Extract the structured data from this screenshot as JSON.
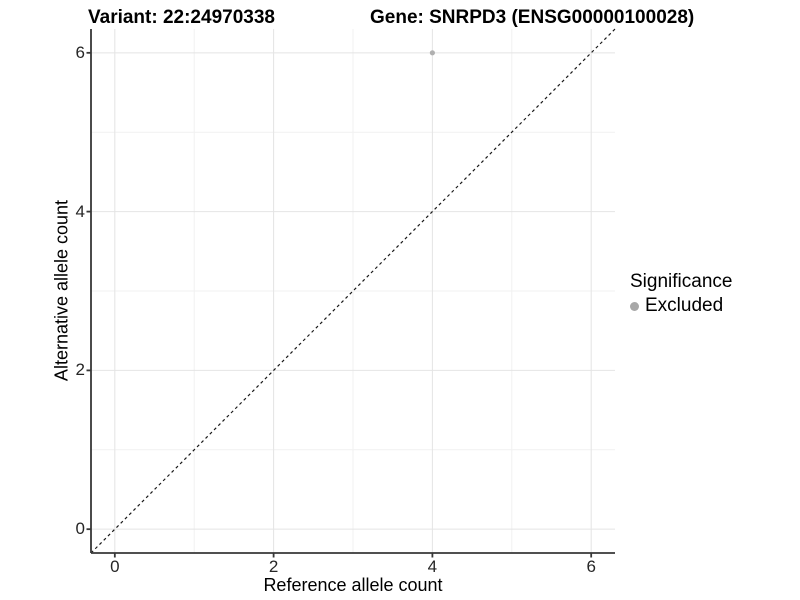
{
  "title_left": "Variant: 22:24970338",
  "title_right": "Gene: SNRPD3 (ENSG00000100028)",
  "legend": {
    "title": "Significance",
    "items": [
      {
        "label": "Excluded",
        "color": "#a8a8a8"
      }
    ]
  },
  "chart_data": {
    "type": "scatter",
    "title": "Variant: 22:24970338 / Gene: SNRPD3 (ENSG00000100028)",
    "xlabel": "Reference allele count",
    "ylabel": "Alternative allele count",
    "xlim": [
      -0.3,
      6.3
    ],
    "ylim": [
      -0.3,
      6.3
    ],
    "xticks": [
      0,
      2,
      4,
      6
    ],
    "yticks": [
      0,
      2,
      4,
      6
    ],
    "xticks_minor": [
      1,
      3,
      5
    ],
    "yticks_minor": [
      1,
      3,
      5
    ],
    "grid": true,
    "legend_position": "right",
    "series": [
      {
        "name": "Excluded",
        "color": "#b0b0b0",
        "points": [
          {
            "x": 4,
            "y": 6
          }
        ]
      }
    ],
    "reference_line": {
      "kind": "identity y=x",
      "style": "dashed",
      "color": "#1a1a1a",
      "x1": -0.3,
      "y1": -0.3,
      "x2": 6.3,
      "y2": 6.3
    }
  },
  "style": {
    "background": "#ffffff",
    "grid_major_color": "#e4e4e4",
    "grid_minor_color": "#f1f1f1",
    "axis_color": "#373737",
    "tick_label_color": "#262626",
    "point_color": "#b0b0b0"
  }
}
